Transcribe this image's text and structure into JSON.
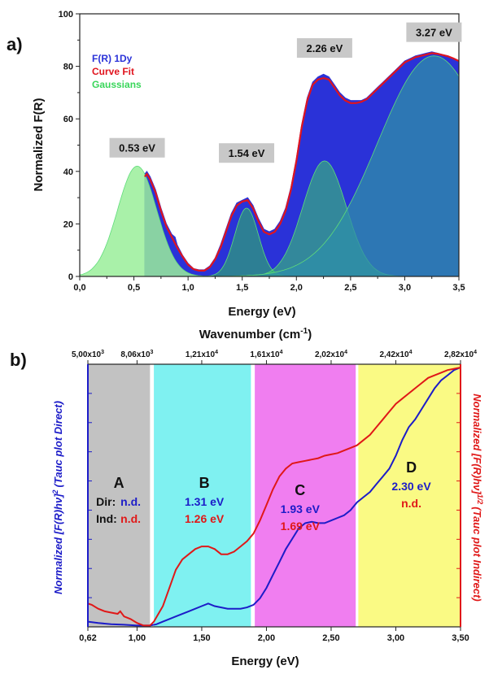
{
  "chart_data": [
    {
      "id": "panel-a",
      "type": "area",
      "panel_label": "a)",
      "xlabel": "Energy (eV)",
      "ylabel": "Normalized F(R)",
      "xlim": [
        0,
        3.5
      ],
      "ylim": [
        0,
        100
      ],
      "xticks": [
        "0,0",
        "0,5",
        "1,0",
        "1,5",
        "2,0",
        "2,5",
        "3,0",
        "3,5"
      ],
      "xtick_values": [
        0,
        0.5,
        1.0,
        1.5,
        2.0,
        2.5,
        3.0,
        3.5
      ],
      "yticks": [
        "0",
        "20",
        "40",
        "60",
        "80",
        "100"
      ],
      "ytick_values": [
        0,
        20,
        40,
        60,
        80,
        100
      ],
      "legend": [
        {
          "label": "F(R) 1Dy",
          "color": "#2a32d8"
        },
        {
          "label": "Curve Fit",
          "color": "#e0141e"
        },
        {
          "label": "Gaussians",
          "color": "#39d65a"
        }
      ],
      "peak_labels": [
        {
          "text": "0.53 eV",
          "x": 0.53,
          "y": 49
        },
        {
          "text": "1.54 eV",
          "x": 1.54,
          "y": 47
        },
        {
          "text": "2.26 eV",
          "x": 2.26,
          "y": 87
        },
        {
          "text": "3.27 eV",
          "x": 3.27,
          "y": 93
        }
      ],
      "series": [
        {
          "name": "F(R) 1Dy",
          "x": [
            0.6,
            0.62,
            0.65,
            0.7,
            0.75,
            0.8,
            0.85,
            0.88,
            0.9,
            0.95,
            1.0,
            1.05,
            1.1,
            1.15,
            1.2,
            1.25,
            1.3,
            1.35,
            1.4,
            1.45,
            1.5,
            1.55,
            1.6,
            1.65,
            1.7,
            1.75,
            1.8,
            1.85,
            1.9,
            1.95,
            2.0,
            2.05,
            2.1,
            2.15,
            2.2,
            2.25,
            2.3,
            2.35,
            2.4,
            2.45,
            2.5,
            2.55,
            2.6,
            2.65,
            2.7,
            2.75,
            2.8,
            2.85,
            2.9,
            2.95,
            3.0,
            3.05,
            3.1,
            3.15,
            3.2,
            3.25,
            3.3,
            3.35,
            3.4,
            3.45,
            3.5
          ],
          "y": [
            39,
            40,
            38,
            33,
            26,
            20,
            16,
            15,
            12,
            8,
            5,
            3,
            2.5,
            2.5,
            4,
            7,
            12,
            18,
            24,
            28,
            29,
            30,
            27,
            22,
            18,
            17,
            18,
            21,
            26,
            34,
            45,
            58,
            68,
            74,
            76,
            77,
            76,
            73,
            70,
            68,
            67,
            67,
            67,
            68,
            70,
            72,
            74,
            76,
            78,
            80,
            82,
            83,
            84,
            84.5,
            85,
            85.5,
            85,
            84.5,
            84,
            83,
            82
          ]
        },
        {
          "name": "Curve Fit",
          "x": [
            0.6,
            0.62,
            0.65,
            0.7,
            0.75,
            0.8,
            0.85,
            0.9,
            0.95,
            1.0,
            1.05,
            1.1,
            1.15,
            1.2,
            1.25,
            1.3,
            1.35,
            1.4,
            1.45,
            1.5,
            1.55,
            1.6,
            1.65,
            1.7,
            1.75,
            1.8,
            1.85,
            1.9,
            1.95,
            2.0,
            2.05,
            2.1,
            2.15,
            2.2,
            2.25,
            2.3,
            2.35,
            2.4,
            2.45,
            2.5,
            2.55,
            2.6,
            2.65,
            2.7,
            2.75,
            2.8,
            2.85,
            2.9,
            2.95,
            3.0,
            3.05,
            3.1,
            3.15,
            3.2,
            3.25,
            3.3,
            3.35,
            3.4,
            3.45,
            3.5
          ],
          "y": [
            38,
            39,
            37,
            32,
            25,
            19,
            15,
            11,
            7.5,
            4.5,
            2.8,
            2.2,
            2.2,
            3.5,
            6.5,
            11,
            17,
            23,
            27,
            28.5,
            29,
            26,
            21,
            17,
            16,
            17,
            20,
            25,
            33,
            44,
            57,
            67,
            73,
            75,
            75.5,
            75,
            72,
            69,
            67,
            66,
            66,
            66.5,
            67.5,
            69.5,
            71.5,
            73.5,
            75.5,
            77.5,
            79.5,
            81.5,
            82.5,
            83.5,
            84,
            84.5,
            85,
            84.8,
            84.3,
            83.8,
            83,
            82
          ]
        },
        {
          "name": "Gaussians",
          "components": [
            {
              "center": 0.53,
              "amplitude": 42,
              "sigma": 0.18
            },
            {
              "center": 1.54,
              "amplitude": 26,
              "sigma": 0.11
            },
            {
              "center": 2.26,
              "amplitude": 44,
              "sigma": 0.2
            },
            {
              "center": 3.27,
              "amplitude": 84,
              "sigma": 0.52
            }
          ]
        }
      ]
    },
    {
      "id": "panel-b",
      "type": "line",
      "panel_label": "b)",
      "xlabel": "Energy (eV)",
      "top_xlabel_text": "Wavenumber (cm",
      "top_xlabel_sup": "-1",
      "top_xlabel_close": ")",
      "ylabel_left_text": "Normalized [F(R)hν]",
      "ylabel_left_sup": "2",
      "ylabel_left_note": "(Tauc plot Direct)",
      "ylabel_right_text": "Normalized [F(R)hν]",
      "ylabel_right_sup": "1/2",
      "ylabel_right_note": "(Tauc plot Indirect)",
      "xlim": [
        0.62,
        3.5
      ],
      "xticks": [
        "0,62",
        "1,00",
        "1,50",
        "2,00",
        "2,50",
        "3,00",
        "3,50"
      ],
      "xtick_values": [
        0.62,
        1.0,
        1.5,
        2.0,
        2.5,
        3.0,
        3.5
      ],
      "top_ticks": [
        {
          "label": "5,00x10",
          "sup": "3",
          "energy": 0.62
        },
        {
          "label": "8,06x10",
          "sup": "3",
          "energy": 1.0
        },
        {
          "label": "1,21x10",
          "sup": "4",
          "energy": 1.5
        },
        {
          "label": "1,61x10",
          "sup": "4",
          "energy": 2.0
        },
        {
          "label": "2,02x10",
          "sup": "4",
          "energy": 2.5
        },
        {
          "label": "2,42x10",
          "sup": "4",
          "energy": 3.0
        },
        {
          "label": "2,82x10",
          "sup": "4",
          "energy": 3.5
        }
      ],
      "row_labels": {
        "dir": "Dir:",
        "ind": "Ind:"
      },
      "regions": [
        {
          "label": "A",
          "from": 0.62,
          "to": 1.1,
          "color": "#c2c2c2",
          "dir": "n.d.",
          "ind": "n.d."
        },
        {
          "label": "B",
          "from": 1.13,
          "to": 1.88,
          "color": "#7ff1f1",
          "dir": "1.31 eV",
          "ind": "1.26 eV"
        },
        {
          "label": "C",
          "from": 1.91,
          "to": 2.69,
          "color": "#f07ef0",
          "dir": "1.93 eV",
          "ind": "1.69 eV"
        },
        {
          "label": "D",
          "from": 2.71,
          "to": 3.5,
          "color": "#fafa84",
          "dir": "2.30 eV",
          "ind": "n.d."
        }
      ],
      "series": [
        {
          "name": "Direct",
          "color": "#1c1cc8",
          "x": [
            0.62,
            0.7,
            0.8,
            0.9,
            1.0,
            1.05,
            1.1,
            1.15,
            1.2,
            1.3,
            1.4,
            1.5,
            1.55,
            1.6,
            1.7,
            1.8,
            1.85,
            1.9,
            1.95,
            2.0,
            2.05,
            2.1,
            2.15,
            2.2,
            2.25,
            2.3,
            2.35,
            2.4,
            2.45,
            2.5,
            2.55,
            2.6,
            2.65,
            2.7,
            2.75,
            2.8,
            2.85,
            2.9,
            2.95,
            3.0,
            3.05,
            3.1,
            3.15,
            3.2,
            3.25,
            3.3,
            3.35,
            3.4,
            3.45,
            3.5
          ],
          "y": [
            0.02,
            0.015,
            0.01,
            0.008,
            0.005,
            0.005,
            0.005,
            0.01,
            0.02,
            0.04,
            0.06,
            0.08,
            0.09,
            0.08,
            0.07,
            0.07,
            0.075,
            0.085,
            0.11,
            0.15,
            0.2,
            0.25,
            0.3,
            0.34,
            0.38,
            0.4,
            0.405,
            0.4,
            0.4,
            0.41,
            0.42,
            0.43,
            0.45,
            0.48,
            0.5,
            0.52,
            0.55,
            0.58,
            0.61,
            0.66,
            0.72,
            0.77,
            0.8,
            0.84,
            0.88,
            0.92,
            0.95,
            0.97,
            0.99,
            1.0
          ]
        },
        {
          "name": "Indirect",
          "color": "#e01818",
          "x": [
            0.62,
            0.65,
            0.7,
            0.75,
            0.8,
            0.85,
            0.87,
            0.9,
            0.95,
            1.0,
            1.05,
            1.1,
            1.13,
            1.2,
            1.25,
            1.3,
            1.35,
            1.4,
            1.45,
            1.5,
            1.55,
            1.6,
            1.65,
            1.7,
            1.75,
            1.8,
            1.85,
            1.9,
            1.95,
            2.0,
            2.05,
            2.1,
            2.15,
            2.2,
            2.25,
            2.3,
            2.35,
            2.4,
            2.45,
            2.5,
            2.55,
            2.6,
            2.65,
            2.7,
            2.75,
            2.8,
            2.85,
            2.9,
            2.95,
            3.0,
            3.05,
            3.1,
            3.15,
            3.2,
            3.25,
            3.3,
            3.35,
            3.4,
            3.45,
            3.5
          ],
          "y": [
            0.09,
            0.085,
            0.07,
            0.06,
            0.055,
            0.05,
            0.06,
            0.04,
            0.03,
            0.015,
            0.005,
            0.005,
            0.02,
            0.08,
            0.15,
            0.22,
            0.26,
            0.28,
            0.3,
            0.31,
            0.31,
            0.3,
            0.28,
            0.28,
            0.29,
            0.31,
            0.33,
            0.36,
            0.41,
            0.47,
            0.53,
            0.58,
            0.61,
            0.63,
            0.635,
            0.64,
            0.645,
            0.65,
            0.66,
            0.665,
            0.67,
            0.68,
            0.69,
            0.7,
            0.72,
            0.74,
            0.77,
            0.8,
            0.83,
            0.86,
            0.88,
            0.9,
            0.92,
            0.94,
            0.96,
            0.97,
            0.98,
            0.99,
            0.995,
            1.0
          ]
        }
      ]
    }
  ]
}
